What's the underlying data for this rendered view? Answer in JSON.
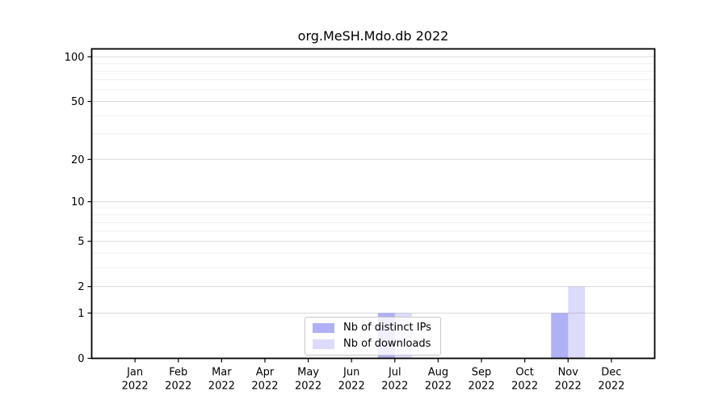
{
  "title": "org.MeSH.Mdo.db 2022",
  "chart_data": {
    "type": "bar",
    "title": "org.MeSH.Mdo.db 2022",
    "categories": [
      "Jan",
      "Feb",
      "Mar",
      "Apr",
      "May",
      "Jun",
      "Jul",
      "Aug",
      "Sep",
      "Oct",
      "Nov",
      "Dec"
    ],
    "year": "2022",
    "series": [
      {
        "name": "Nb of distinct IPs",
        "color": "rgba(80,80,230,0.45)",
        "values": [
          0,
          0,
          0,
          0,
          0,
          0,
          1,
          0,
          0,
          0,
          1,
          0
        ]
      },
      {
        "name": "Nb of downloads",
        "color": "rgba(80,80,230,0.20)",
        "values": [
          0,
          0,
          0,
          0,
          0,
          0,
          1,
          0,
          0,
          0,
          2,
          0
        ]
      }
    ],
    "y_scale": "log1p",
    "y_ticks": [
      0,
      1,
      2,
      5,
      10,
      20,
      50,
      100
    ],
    "y_minor_ticks": [
      3,
      4,
      6,
      7,
      8,
      9,
      30,
      40,
      60,
      70,
      80,
      90
    ],
    "ylim": [
      0,
      113
    ],
    "grid": true,
    "legend_position": "bottom-center",
    "colors": {
      "frame": "#000000",
      "grid_major": "#d9d9d9",
      "grid_minor": "#efefef"
    }
  }
}
